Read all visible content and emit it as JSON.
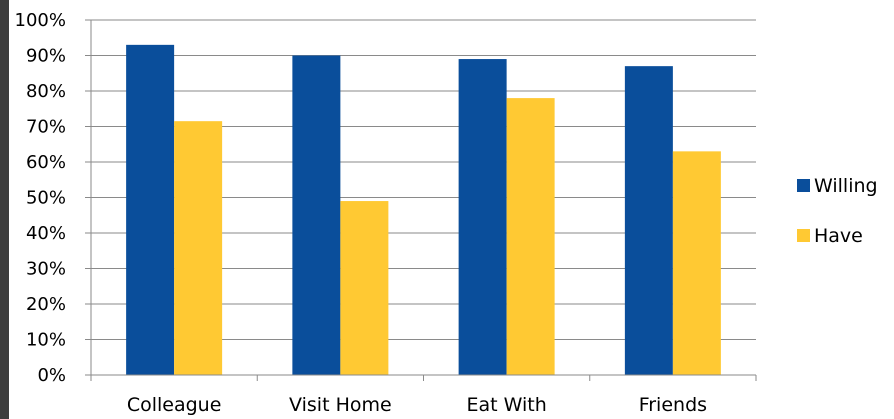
{
  "chart_data": {
    "type": "bar",
    "title": "",
    "xlabel": "",
    "ylabel": "",
    "categories": [
      "Colleague",
      "Visit Home",
      "Eat With",
      "Friends"
    ],
    "series": [
      {
        "name": "Willing",
        "color": "#0a4e9b",
        "values": [
          93,
          90,
          89,
          87
        ]
      },
      {
        "name": "Have",
        "color": "#ffc933",
        "values": [
          71.5,
          49,
          78,
          63
        ]
      }
    ],
    "ylim": [
      0,
      100
    ],
    "yticks": [
      "0%",
      "10%",
      "20%",
      "30%",
      "40%",
      "50%",
      "60%",
      "70%",
      "80%",
      "90%",
      "100%"
    ],
    "grid": true,
    "legend_position": "right"
  }
}
